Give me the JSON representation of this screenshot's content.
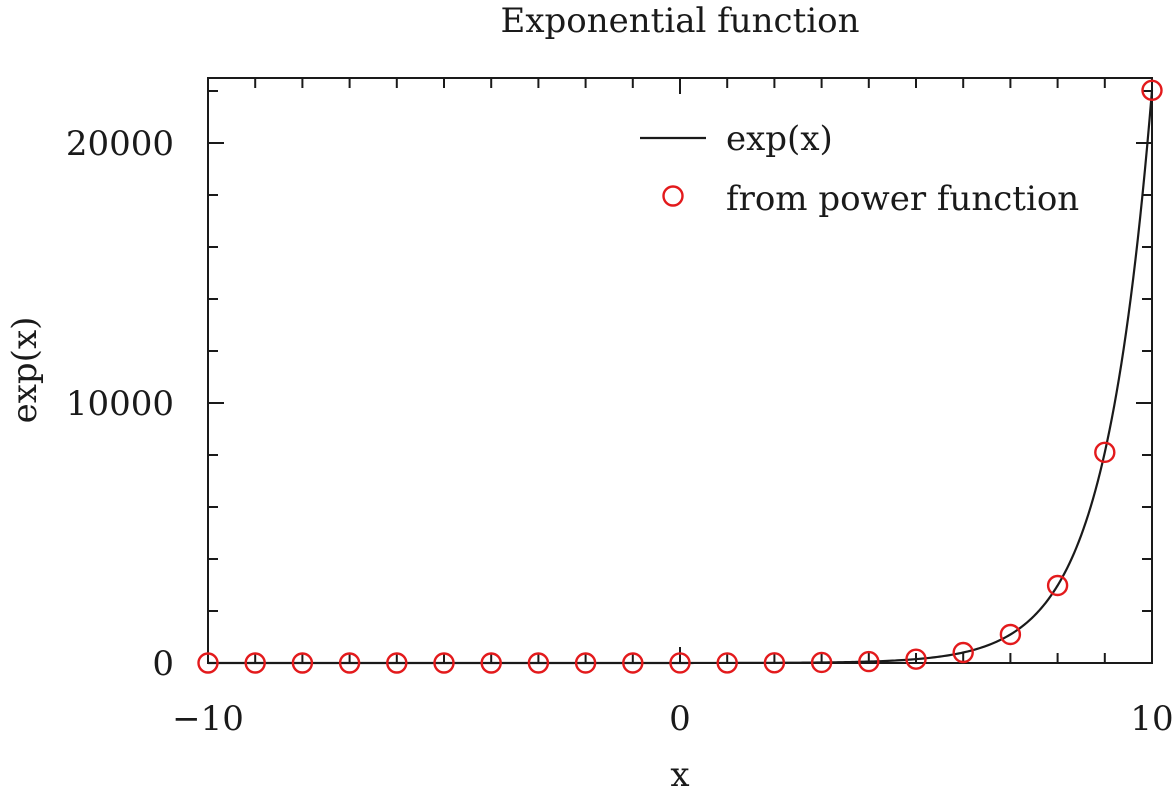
{
  "chart_data": {
    "type": "line",
    "title": "Exponential function",
    "xlabel": "x",
    "ylabel": "exp(x)",
    "xlim": [
      -10,
      10
    ],
    "ylim": [
      0,
      22500
    ],
    "x_ticks": [
      -10,
      0,
      10
    ],
    "x_tick_labels": [
      "−10",
      "0",
      "10"
    ],
    "y_ticks": [
      0,
      10000,
      20000
    ],
    "y_tick_labels": [
      "0",
      "10000",
      "20000"
    ],
    "grid": false,
    "legend": {
      "position": "top-right"
    },
    "series": [
      {
        "name": "exp(x)",
        "type": "line",
        "function": "exp(x)",
        "color": "#1a1a1a"
      },
      {
        "name": "from power function",
        "type": "scatter",
        "marker": "open-circle",
        "color": "#e31a1c",
        "x": [
          -10,
          -9,
          -8,
          -7,
          -6,
          -5,
          -4,
          -3,
          -2,
          -1,
          0,
          1,
          2,
          3,
          4,
          5,
          6,
          7,
          8,
          9,
          10
        ],
        "y": [
          4.54e-05,
          0.000123,
          0.000335,
          0.000912,
          0.00248,
          0.00674,
          0.0183,
          0.0498,
          0.135,
          0.368,
          1,
          2.718,
          7.389,
          20.09,
          54.6,
          148.4,
          403.4,
          1096.6,
          2981.0,
          8103.1,
          22026.5
        ]
      }
    ]
  }
}
